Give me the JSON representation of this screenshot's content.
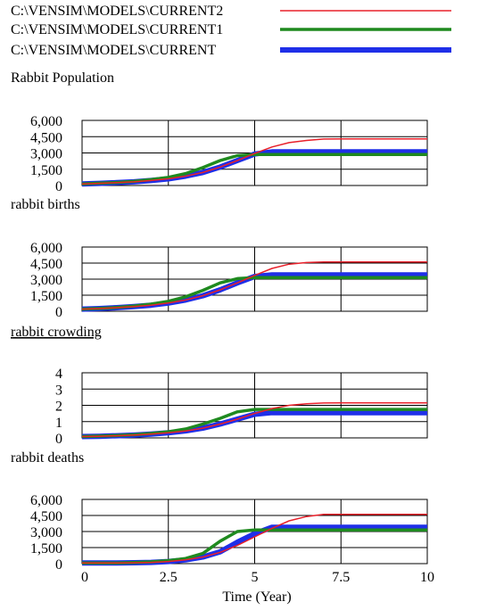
{
  "legend": [
    {
      "label": "C:\\VENSIM\\MODELS\\CURRENT2",
      "color": "#e8202a",
      "weight": "thin"
    },
    {
      "label": "C:\\VENSIM\\MODELS\\CURRENT1",
      "color": "#1f8a1f",
      "weight": "medium"
    },
    {
      "label": "C:\\VENSIM\\MODELS\\CURRENT",
      "color": "#1f2fe8",
      "weight": "thick"
    }
  ],
  "chart_data": [
    {
      "type": "line",
      "title": "Rabbit Population",
      "xlabel": "Time (Year)",
      "xlim": [
        0,
        10
      ],
      "ylim": [
        0,
        6000
      ],
      "yticks": [
        "6,000",
        "4,500",
        "3,000",
        "1,500",
        "0"
      ],
      "grid": true,
      "series": [
        {
          "name": "C:\\VENSIM\\MODELS\\CURRENT2",
          "x": [
            0,
            0.5,
            1,
            1.5,
            2,
            2.5,
            3,
            3.5,
            4,
            4.5,
            5,
            5.5,
            6,
            6.5,
            7,
            7.5,
            8,
            8.5,
            9,
            9.5,
            10
          ],
          "y": [
            150,
            200,
            260,
            340,
            460,
            620,
            860,
            1200,
            1700,
            2300,
            2950,
            3550,
            3950,
            4150,
            4280,
            4300,
            4300,
            4300,
            4300,
            4300,
            4300
          ]
        },
        {
          "name": "C:\\VENSIM\\MODELS\\CURRENT1",
          "x": [
            0,
            0.5,
            1,
            1.5,
            2,
            2.5,
            3,
            3.5,
            4,
            4.5,
            5,
            5.5,
            6,
            6.5,
            7,
            7.5,
            8,
            8.5,
            9,
            9.5,
            10
          ],
          "y": [
            150,
            210,
            280,
            380,
            540,
            760,
            1100,
            1650,
            2300,
            2750,
            2850,
            2850,
            2850,
            2850,
            2850,
            2850,
            2850,
            2850,
            2850,
            2850,
            2850
          ]
        },
        {
          "name": "C:\\VENSIM\\MODELS\\CURRENT",
          "x": [
            0,
            0.5,
            1,
            1.5,
            2,
            2.5,
            3,
            3.5,
            4,
            4.5,
            5,
            5.5,
            6,
            6.5,
            7,
            7.5,
            8,
            8.5,
            9,
            9.5,
            10
          ],
          "y": [
            150,
            200,
            260,
            340,
            460,
            620,
            860,
            1200,
            1700,
            2300,
            2900,
            3100,
            3100,
            3100,
            3100,
            3100,
            3100,
            3100,
            3100,
            3100,
            3100
          ]
        }
      ]
    },
    {
      "type": "line",
      "title": "rabbit births",
      "xlabel": "Time (Year)",
      "xlim": [
        0,
        10
      ],
      "ylim": [
        0,
        6000
      ],
      "yticks": [
        "6,000",
        "4,500",
        "3,000",
        "1,500",
        "0"
      ],
      "grid": true,
      "series": [
        {
          "name": "C:\\VENSIM\\MODELS\\CURRENT2",
          "x": [
            0,
            0.5,
            1,
            1.5,
            2,
            2.5,
            3,
            3.5,
            4,
            4.5,
            5,
            5.5,
            6,
            6.5,
            7,
            7.5,
            8,
            8.5,
            9,
            9.5,
            10
          ],
          "y": [
            200,
            250,
            330,
            430,
            570,
            770,
            1050,
            1450,
            2000,
            2650,
            3350,
            4000,
            4400,
            4550,
            4600,
            4600,
            4600,
            4600,
            4600,
            4600,
            4600
          ]
        },
        {
          "name": "C:\\VENSIM\\MODELS\\CURRENT1",
          "x": [
            0,
            0.5,
            1,
            1.5,
            2,
            2.5,
            3,
            3.5,
            4,
            4.5,
            5,
            5.5,
            6,
            6.5,
            7,
            7.5,
            8,
            8.5,
            9,
            9.5,
            10
          ],
          "y": [
            200,
            260,
            350,
            480,
            670,
            930,
            1350,
            1950,
            2650,
            3050,
            3150,
            3150,
            3150,
            3150,
            3150,
            3150,
            3150,
            3150,
            3150,
            3150,
            3150
          ]
        },
        {
          "name": "C:\\VENSIM\\MODELS\\CURRENT",
          "x": [
            0,
            0.5,
            1,
            1.5,
            2,
            2.5,
            3,
            3.5,
            4,
            4.5,
            5,
            5.5,
            6,
            6.5,
            7,
            7.5,
            8,
            8.5,
            9,
            9.5,
            10
          ],
          "y": [
            200,
            250,
            330,
            430,
            570,
            770,
            1050,
            1450,
            2000,
            2650,
            3250,
            3400,
            3400,
            3400,
            3400,
            3400,
            3400,
            3400,
            3400,
            3400,
            3400
          ]
        }
      ]
    },
    {
      "type": "line",
      "title": "rabbit crowding",
      "xlabel": "Time (Year)",
      "xlim": [
        0,
        10
      ],
      "ylim": [
        0,
        4
      ],
      "yticks": [
        "4",
        "3",
        "2",
        "1",
        "0"
      ],
      "grid": true,
      "series": [
        {
          "name": "C:\\VENSIM\\MODELS\\CURRENT2",
          "x": [
            0,
            0.5,
            1,
            1.5,
            2,
            2.5,
            3,
            3.5,
            4,
            4.5,
            5,
            5.5,
            6,
            6.5,
            7,
            7.5,
            8,
            8.5,
            9,
            9.5,
            10
          ],
          "y": [
            0.08,
            0.1,
            0.13,
            0.17,
            0.23,
            0.31,
            0.43,
            0.6,
            0.85,
            1.15,
            1.5,
            1.8,
            2.0,
            2.1,
            2.14,
            2.15,
            2.15,
            2.15,
            2.15,
            2.15,
            2.15
          ]
        },
        {
          "name": "C:\\VENSIM\\MODELS\\CURRENT1",
          "x": [
            0,
            0.5,
            1,
            1.5,
            2,
            2.5,
            3,
            3.5,
            4,
            4.5,
            5,
            5.5,
            6,
            6.5,
            7,
            7.5,
            8,
            8.5,
            9,
            9.5,
            10
          ],
          "y": [
            0.08,
            0.11,
            0.14,
            0.19,
            0.27,
            0.38,
            0.55,
            0.85,
            1.2,
            1.6,
            1.75,
            1.75,
            1.75,
            1.75,
            1.75,
            1.75,
            1.75,
            1.75,
            1.75,
            1.75,
            1.75
          ]
        },
        {
          "name": "C:\\VENSIM\\MODELS\\CURRENT",
          "x": [
            0,
            0.5,
            1,
            1.5,
            2,
            2.5,
            3,
            3.5,
            4,
            4.5,
            5,
            5.5,
            6,
            6.5,
            7,
            7.5,
            8,
            8.5,
            9,
            9.5,
            10
          ],
          "y": [
            0.08,
            0.1,
            0.13,
            0.17,
            0.23,
            0.31,
            0.43,
            0.6,
            0.85,
            1.15,
            1.45,
            1.55,
            1.55,
            1.55,
            1.55,
            1.55,
            1.55,
            1.55,
            1.55,
            1.55,
            1.55
          ]
        }
      ]
    },
    {
      "type": "line",
      "title": "rabbit deaths",
      "xlabel": "Time (Year)",
      "xlim": [
        0,
        10
      ],
      "ylim": [
        0,
        6000
      ],
      "yticks": [
        "6,000",
        "4,500",
        "3,000",
        "1,500",
        "0"
      ],
      "xticks": [
        "0",
        "2.5",
        "5",
        "7.5",
        "10"
      ],
      "grid": true,
      "series": [
        {
          "name": "C:\\VENSIM\\MODELS\\CURRENT2",
          "x": [
            0,
            0.5,
            1,
            1.5,
            2,
            2.5,
            3,
            3.5,
            4,
            4.5,
            5,
            5.5,
            6,
            6.5,
            7,
            7.5,
            8,
            8.5,
            9,
            9.5,
            10
          ],
          "y": [
            60,
            60,
            60,
            80,
            120,
            200,
            350,
            620,
            1050,
            1700,
            2500,
            3300,
            4000,
            4400,
            4600,
            4600,
            4600,
            4600,
            4600,
            4600,
            4600
          ]
        },
        {
          "name": "C:\\VENSIM\\MODELS\\CURRENT1",
          "x": [
            0,
            0.5,
            1,
            1.5,
            2,
            2.5,
            3,
            3.5,
            4,
            4.5,
            5,
            5.5,
            6,
            6.5,
            7,
            7.5,
            8,
            8.5,
            9,
            9.5,
            10
          ],
          "y": [
            60,
            60,
            60,
            100,
            170,
            280,
            480,
            950,
            2100,
            3000,
            3150,
            3150,
            3150,
            3150,
            3150,
            3150,
            3150,
            3150,
            3150,
            3150,
            3150
          ]
        },
        {
          "name": "C:\\VENSIM\\MODELS\\CURRENT",
          "x": [
            0,
            0.5,
            1,
            1.5,
            2,
            2.5,
            3,
            3.5,
            4,
            4.5,
            5,
            5.5,
            6,
            6.5,
            7,
            7.5,
            8,
            8.5,
            9,
            9.5,
            10
          ],
          "y": [
            60,
            60,
            60,
            80,
            120,
            200,
            350,
            620,
            1100,
            2000,
            2800,
            3400,
            3400,
            3400,
            3400,
            3400,
            3400,
            3400,
            3400,
            3400,
            3400
          ]
        }
      ]
    }
  ]
}
